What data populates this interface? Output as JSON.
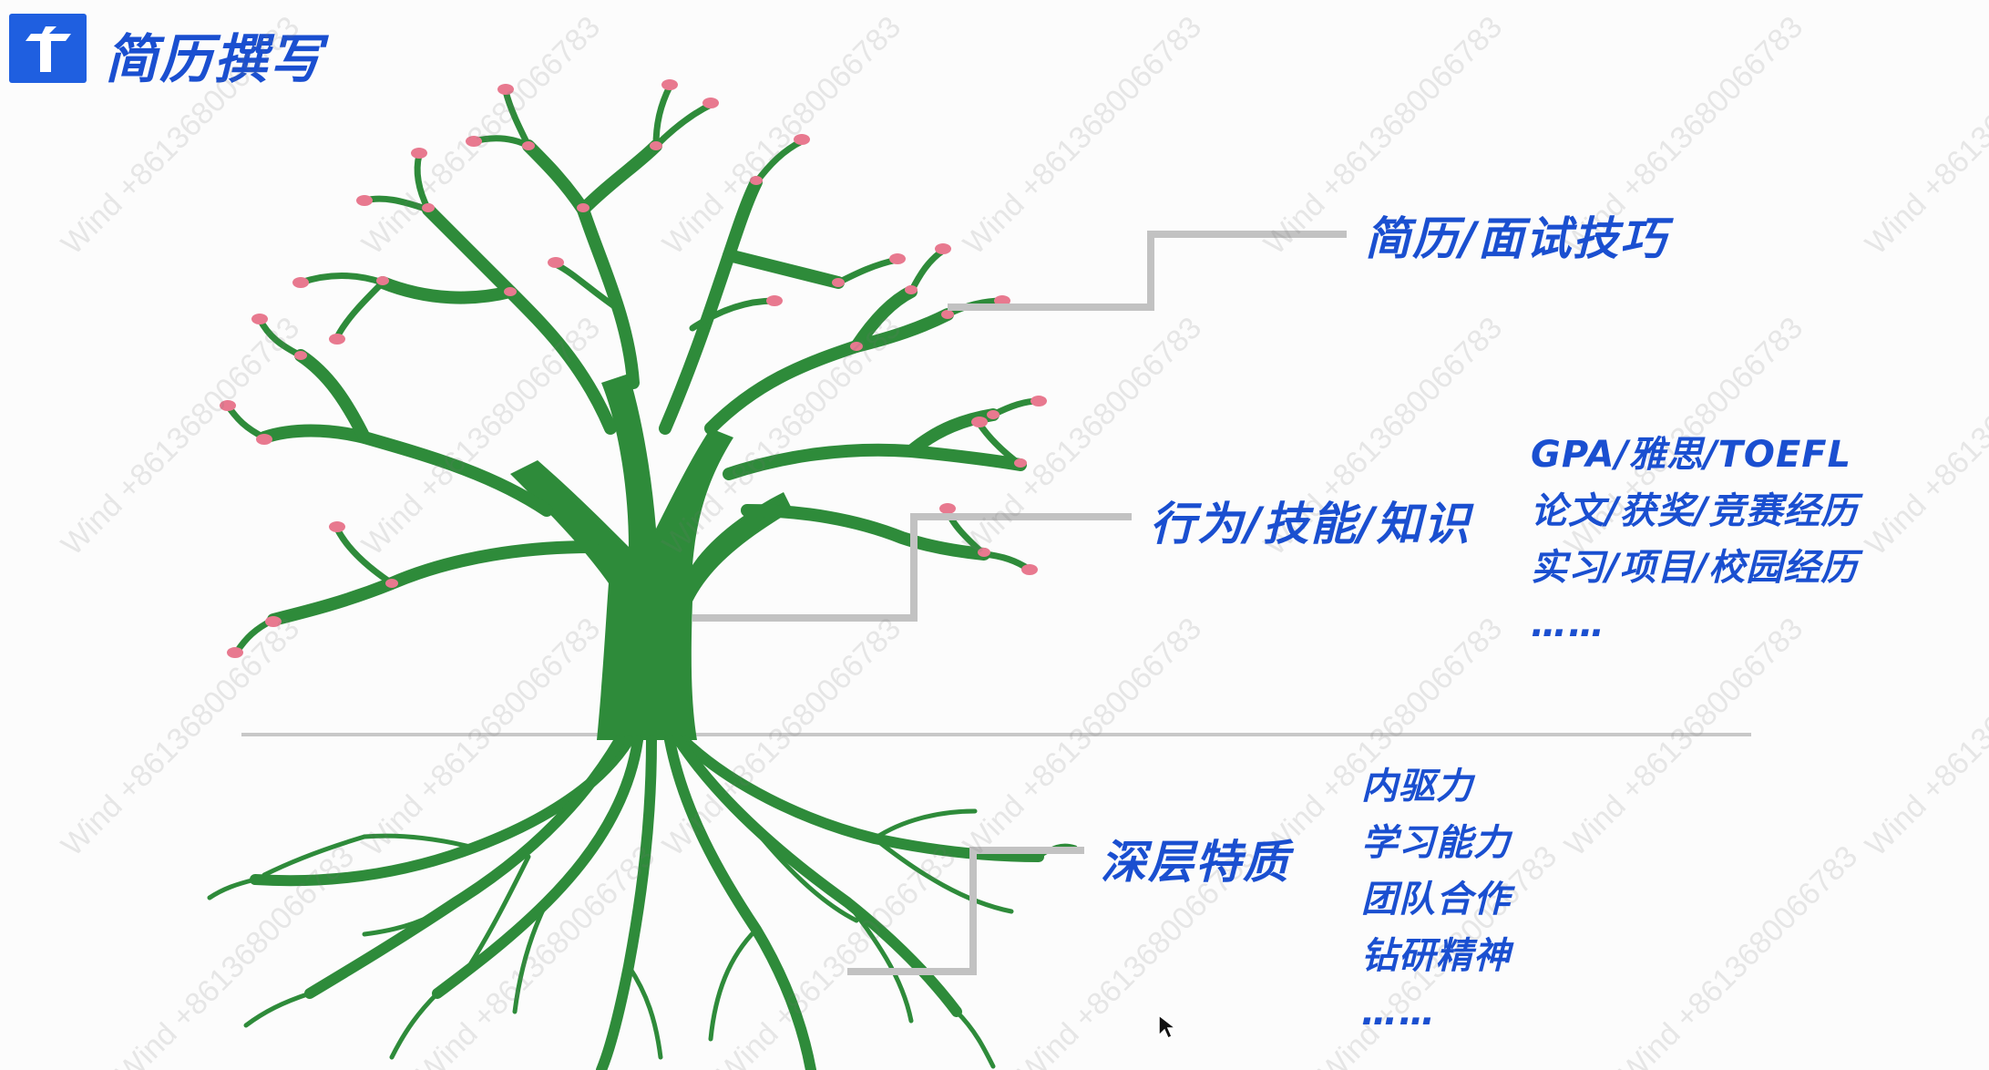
{
  "header": {
    "title": "简历撰写",
    "logo_icon": "tree-t-logo-icon",
    "brand_color": "#1f5fe0"
  },
  "diagram": {
    "accent_color": "#1a4fd0",
    "tree_color": "#2e8b3a",
    "blossom_color": "#e8798f",
    "levels": [
      {
        "id": "top",
        "title": "简历/面试技巧",
        "items": []
      },
      {
        "id": "middle",
        "title": "行为/技能/知识",
        "items": [
          "GPA/雅思/TOEFL",
          "论文/获奖/竞赛经历",
          "实习/项目/校园经历",
          "……"
        ]
      },
      {
        "id": "bottom",
        "title": "深层特质",
        "items": [
          "内驱力",
          "学习能力",
          "团队合作",
          "钻研精神",
          "……"
        ]
      }
    ]
  },
  "watermark": {
    "text": "Wind +8613680066783"
  }
}
